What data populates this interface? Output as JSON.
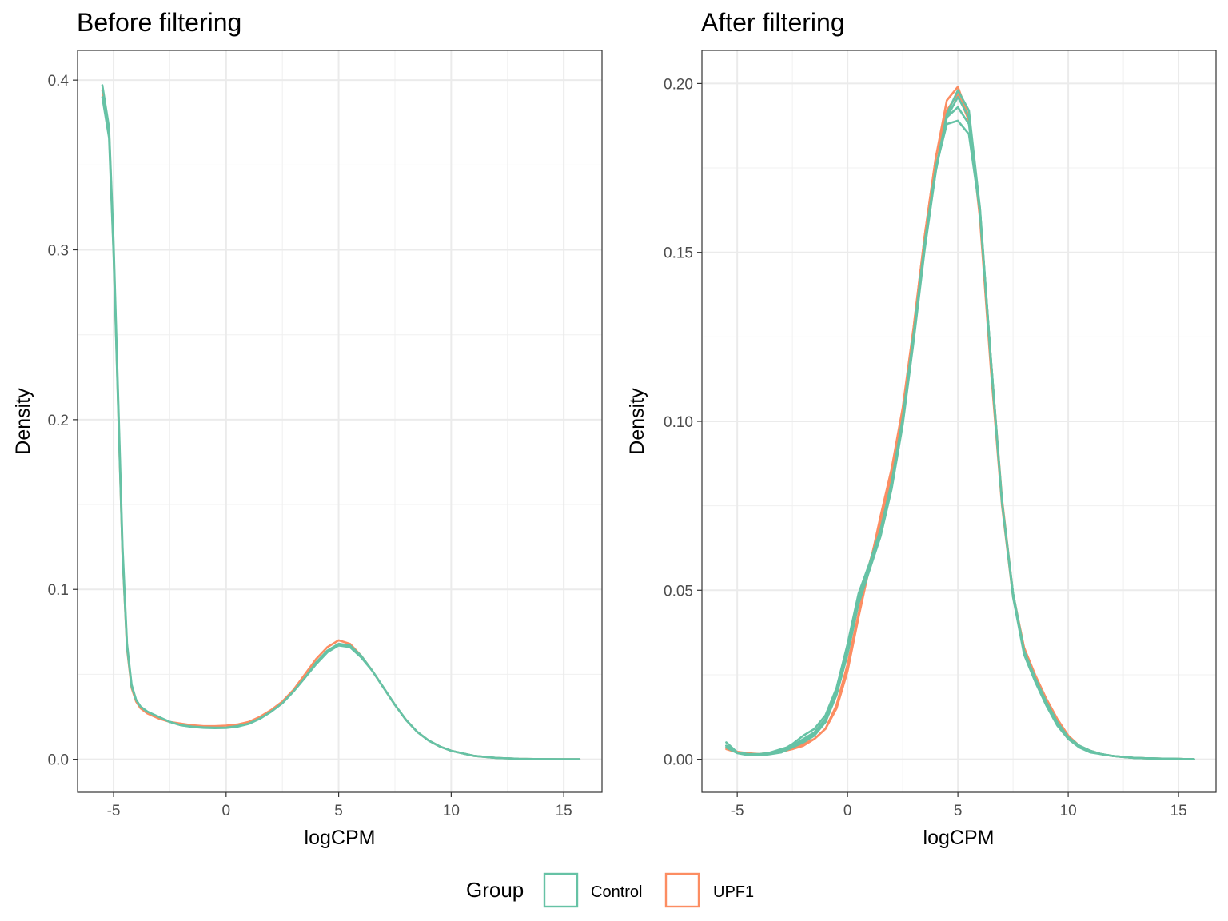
{
  "chart_data": [
    {
      "type": "line",
      "title": "Before filtering",
      "xlabel": "logCPM",
      "ylabel": "Density",
      "xlim": [
        -6.6,
        16.7
      ],
      "ylim": [
        -0.0195,
        0.4175
      ],
      "xticks": [
        -5,
        0,
        5,
        10,
        15
      ],
      "yticks": [
        0.0,
        0.1,
        0.2,
        0.3,
        0.4
      ],
      "ytick_labels": [
        "0.0",
        "0.1",
        "0.2",
        "0.3",
        "0.4"
      ],
      "grid": true,
      "series": [
        {
          "group": "UPF1",
          "x": [
            -5.5,
            -5.2,
            -5.0,
            -4.8,
            -4.6,
            -4.4,
            -4.2,
            -4.0,
            -3.8,
            -3.5,
            -3.0,
            -2.5,
            -2.0,
            -1.5,
            -1.0,
            -0.5,
            0.0,
            0.5,
            1.0,
            1.5,
            2.0,
            2.5,
            3.0,
            3.5,
            4.0,
            4.5,
            5.0,
            5.5,
            6.0,
            6.5,
            7.0,
            7.5,
            8.0,
            8.5,
            9.0,
            9.5,
            10.0,
            11.0,
            12.0,
            13.0,
            14.0,
            15.0,
            15.7
          ],
          "y": [
            0.394,
            0.37,
            0.3,
            0.21,
            0.12,
            0.065,
            0.042,
            0.034,
            0.03,
            0.027,
            0.024,
            0.022,
            0.021,
            0.02,
            0.0195,
            0.0195,
            0.0198,
            0.0205,
            0.022,
            0.025,
            0.029,
            0.034,
            0.041,
            0.05,
            0.059,
            0.066,
            0.07,
            0.068,
            0.061,
            0.052,
            0.042,
            0.032,
            0.023,
            0.016,
            0.011,
            0.0075,
            0.005,
            0.002,
            0.0008,
            0.0003,
            0.0001,
            5e-05,
            0.0
          ]
        },
        {
          "group": "Control",
          "x": [
            -5.5,
            -5.2,
            -5.0,
            -4.8,
            -4.6,
            -4.4,
            -4.2,
            -4.0,
            -3.8,
            -3.5,
            -3.0,
            -2.5,
            -2.0,
            -1.5,
            -1.0,
            -0.5,
            0.0,
            0.5,
            1.0,
            1.5,
            2.0,
            2.5,
            3.0,
            3.5,
            4.0,
            4.5,
            5.0,
            5.5,
            6.0,
            6.5,
            7.0,
            7.5,
            8.0,
            8.5,
            9.0,
            9.5,
            10.0,
            11.0,
            12.0,
            13.0,
            14.0,
            15.0,
            15.7
          ],
          "y": [
            0.397,
            0.372,
            0.305,
            0.215,
            0.125,
            0.068,
            0.044,
            0.035,
            0.031,
            0.028,
            0.025,
            0.022,
            0.02,
            0.0192,
            0.0188,
            0.0186,
            0.0187,
            0.0195,
            0.021,
            0.024,
            0.028,
            0.033,
            0.04,
            0.048,
            0.057,
            0.064,
            0.068,
            0.067,
            0.061,
            0.052,
            0.042,
            0.032,
            0.023,
            0.016,
            0.011,
            0.0075,
            0.005,
            0.002,
            0.0008,
            0.0003,
            0.0001,
            5e-05,
            0.0
          ]
        },
        {
          "group": "Control",
          "x": [
            -5.5,
            -5.2,
            -5.0,
            -4.8,
            -4.6,
            -4.4,
            -4.2,
            -4.0,
            -3.8,
            -3.5,
            -3.0,
            -2.5,
            -2.0,
            -1.5,
            -1.0,
            -0.5,
            0.0,
            0.5,
            1.0,
            1.5,
            2.0,
            2.5,
            3.0,
            3.5,
            4.0,
            4.5,
            5.0,
            5.5,
            6.0,
            6.5,
            7.0,
            7.5,
            8.0,
            8.5,
            9.0,
            9.5,
            10.0,
            11.0,
            12.0,
            13.0,
            14.0,
            15.0,
            15.7
          ],
          "y": [
            0.39,
            0.366,
            0.298,
            0.208,
            0.12,
            0.066,
            0.043,
            0.035,
            0.031,
            0.028,
            0.025,
            0.022,
            0.02,
            0.019,
            0.0185,
            0.0183,
            0.0184,
            0.0192,
            0.0208,
            0.0238,
            0.028,
            0.033,
            0.04,
            0.048,
            0.056,
            0.063,
            0.067,
            0.066,
            0.06,
            0.052,
            0.042,
            0.032,
            0.023,
            0.016,
            0.011,
            0.0075,
            0.005,
            0.002,
            0.0008,
            0.0003,
            0.0001,
            5e-05,
            0.0
          ]
        }
      ]
    },
    {
      "type": "line",
      "title": "After filtering",
      "xlabel": "logCPM",
      "ylabel": "Density",
      "xlim": [
        -6.6,
        16.7
      ],
      "ylim": [
        -0.0098,
        0.2098
      ],
      "xticks": [
        -5,
        0,
        5,
        10,
        15
      ],
      "yticks": [
        0.0,
        0.05,
        0.1,
        0.15,
        0.2
      ],
      "ytick_labels": [
        "0.00",
        "0.05",
        "0.10",
        "0.15",
        "0.20"
      ],
      "grid": true,
      "series": [
        {
          "group": "UPF1",
          "x": [
            -5.5,
            -5.0,
            -4.5,
            -4.0,
            -3.5,
            -3.0,
            -2.5,
            -2.0,
            -1.5,
            -1.0,
            -0.5,
            0.0,
            0.5,
            1.0,
            1.5,
            2.0,
            2.5,
            3.0,
            3.5,
            4.0,
            4.5,
            5.0,
            5.5,
            6.0,
            6.5,
            7.0,
            7.5,
            8.0,
            8.5,
            9.0,
            9.5,
            10.0,
            10.5,
            11.0,
            11.5,
            12.0,
            13.0,
            14.0,
            15.0,
            15.7
          ],
          "y": [
            0.003,
            0.002,
            0.0015,
            0.0015,
            0.002,
            0.0025,
            0.003,
            0.004,
            0.006,
            0.009,
            0.016,
            0.028,
            0.043,
            0.058,
            0.07,
            0.084,
            0.103,
            0.128,
            0.155,
            0.178,
            0.195,
            0.199,
            0.19,
            0.16,
            0.115,
            0.075,
            0.048,
            0.033,
            0.025,
            0.018,
            0.012,
            0.007,
            0.004,
            0.0025,
            0.0015,
            0.001,
            0.0004,
            0.0002,
            0.0001,
            0.0
          ]
        },
        {
          "group": "UPF1",
          "x": [
            -5.5,
            -5.0,
            -4.5,
            -4.0,
            -3.5,
            -3.0,
            -2.5,
            -2.0,
            -1.5,
            -1.0,
            -0.5,
            0.0,
            0.5,
            1.0,
            1.5,
            2.0,
            2.5,
            3.0,
            3.5,
            4.0,
            4.5,
            5.0,
            5.5,
            6.0,
            6.5,
            7.0,
            7.5,
            8.0,
            8.5,
            9.0,
            9.5,
            10.0,
            10.5,
            11.0,
            11.5,
            12.0,
            13.0,
            14.0,
            15.0,
            15.7
          ],
          "y": [
            0.004,
            0.0022,
            0.0018,
            0.0015,
            0.0018,
            0.0022,
            0.003,
            0.0045,
            0.006,
            0.009,
            0.015,
            0.026,
            0.042,
            0.057,
            0.072,
            0.086,
            0.104,
            0.128,
            0.155,
            0.178,
            0.192,
            0.197,
            0.189,
            0.162,
            0.118,
            0.077,
            0.049,
            0.033,
            0.024,
            0.017,
            0.011,
            0.0065,
            0.004,
            0.0025,
            0.0015,
            0.001,
            0.0004,
            0.0002,
            0.0001,
            0.0
          ]
        },
        {
          "group": "Control",
          "x": [
            -5.5,
            -5.0,
            -4.5,
            -4.0,
            -3.5,
            -3.0,
            -2.5,
            -2.0,
            -1.5,
            -1.0,
            -0.5,
            0.0,
            0.5,
            1.0,
            1.5,
            2.0,
            2.5,
            3.0,
            3.5,
            4.0,
            4.5,
            5.0,
            5.5,
            6.0,
            6.5,
            7.0,
            7.5,
            8.0,
            8.5,
            9.0,
            9.5,
            10.0,
            10.5,
            11.0,
            11.5,
            12.0,
            13.0,
            14.0,
            15.0,
            15.7
          ],
          "y": [
            0.004,
            0.002,
            0.0015,
            0.0015,
            0.002,
            0.003,
            0.004,
            0.006,
            0.008,
            0.012,
            0.02,
            0.033,
            0.048,
            0.057,
            0.067,
            0.081,
            0.1,
            0.125,
            0.152,
            0.174,
            0.19,
            0.196,
            0.19,
            0.163,
            0.118,
            0.076,
            0.048,
            0.031,
            0.023,
            0.016,
            0.01,
            0.006,
            0.0035,
            0.002,
            0.0015,
            0.001,
            0.0004,
            0.0002,
            0.0001,
            0.0
          ]
        },
        {
          "group": "Control",
          "x": [
            -5.5,
            -5.0,
            -4.5,
            -4.0,
            -3.5,
            -3.0,
            -2.5,
            -2.0,
            -1.5,
            -1.0,
            -0.5,
            0.0,
            0.5,
            1.0,
            1.5,
            2.0,
            2.5,
            3.0,
            3.5,
            4.0,
            4.5,
            5.0,
            5.5,
            6.0,
            6.5,
            7.0,
            7.5,
            8.0,
            8.5,
            9.0,
            9.5,
            10.0,
            10.5,
            11.0,
            11.5,
            12.0,
            13.0,
            14.0,
            15.0,
            15.7
          ],
          "y": [
            0.005,
            0.002,
            0.0015,
            0.0012,
            0.0015,
            0.0025,
            0.0045,
            0.007,
            0.009,
            0.013,
            0.021,
            0.034,
            0.049,
            0.058,
            0.068,
            0.082,
            0.101,
            0.126,
            0.153,
            0.175,
            0.188,
            0.189,
            0.185,
            0.162,
            0.118,
            0.076,
            0.049,
            0.032,
            0.024,
            0.017,
            0.011,
            0.0065,
            0.004,
            0.0025,
            0.0015,
            0.001,
            0.0004,
            0.0002,
            0.0001,
            0.0
          ]
        },
        {
          "group": "Control",
          "x": [
            -5.5,
            -5.0,
            -4.5,
            -4.0,
            -3.5,
            -3.0,
            -2.5,
            -2.0,
            -1.5,
            -1.0,
            -0.5,
            0.0,
            0.5,
            1.0,
            1.5,
            2.0,
            2.5,
            3.0,
            3.5,
            4.0,
            4.5,
            5.0,
            5.5,
            6.0,
            6.5,
            7.0,
            7.5,
            8.0,
            8.5,
            9.0,
            9.5,
            10.0,
            10.5,
            11.0,
            11.5,
            12.0,
            13.0,
            14.0,
            15.0,
            15.7
          ],
          "y": [
            0.0035,
            0.0018,
            0.0012,
            0.0012,
            0.0015,
            0.002,
            0.0035,
            0.005,
            0.007,
            0.011,
            0.019,
            0.031,
            0.046,
            0.056,
            0.066,
            0.08,
            0.099,
            0.124,
            0.151,
            0.174,
            0.191,
            0.198,
            0.192,
            0.163,
            0.117,
            0.076,
            0.049,
            0.032,
            0.024,
            0.017,
            0.011,
            0.0065,
            0.004,
            0.0025,
            0.0015,
            0.001,
            0.0004,
            0.0002,
            0.0001,
            0.0
          ]
        },
        {
          "group": "Control",
          "x": [
            -5.5,
            -5.0,
            -4.5,
            -4.0,
            -3.5,
            -3.0,
            -2.5,
            -2.0,
            -1.5,
            -1.0,
            -0.5,
            0.0,
            0.5,
            1.0,
            1.5,
            2.0,
            2.5,
            3.0,
            3.5,
            4.0,
            4.5,
            5.0,
            5.5,
            6.0,
            6.5,
            7.0,
            7.5,
            8.0,
            8.5,
            9.0,
            9.5,
            10.0,
            10.5,
            11.0,
            11.5,
            12.0,
            13.0,
            14.0,
            15.0,
            15.7
          ],
          "y": [
            0.004,
            0.002,
            0.0015,
            0.0015,
            0.0018,
            0.0025,
            0.0038,
            0.0055,
            0.0075,
            0.011,
            0.019,
            0.032,
            0.047,
            0.057,
            0.067,
            0.081,
            0.1,
            0.125,
            0.152,
            0.175,
            0.19,
            0.193,
            0.188,
            0.162,
            0.118,
            0.076,
            0.049,
            0.032,
            0.024,
            0.017,
            0.011,
            0.0065,
            0.004,
            0.0025,
            0.0015,
            0.001,
            0.0004,
            0.0002,
            0.0001,
            0.0
          ]
        }
      ]
    }
  ],
  "legend": {
    "title": "Group",
    "position": "bottom",
    "items": [
      {
        "label": "Control",
        "color": "#66C2A5"
      },
      {
        "label": "UPF1",
        "color": "#FC8D62"
      }
    ]
  }
}
